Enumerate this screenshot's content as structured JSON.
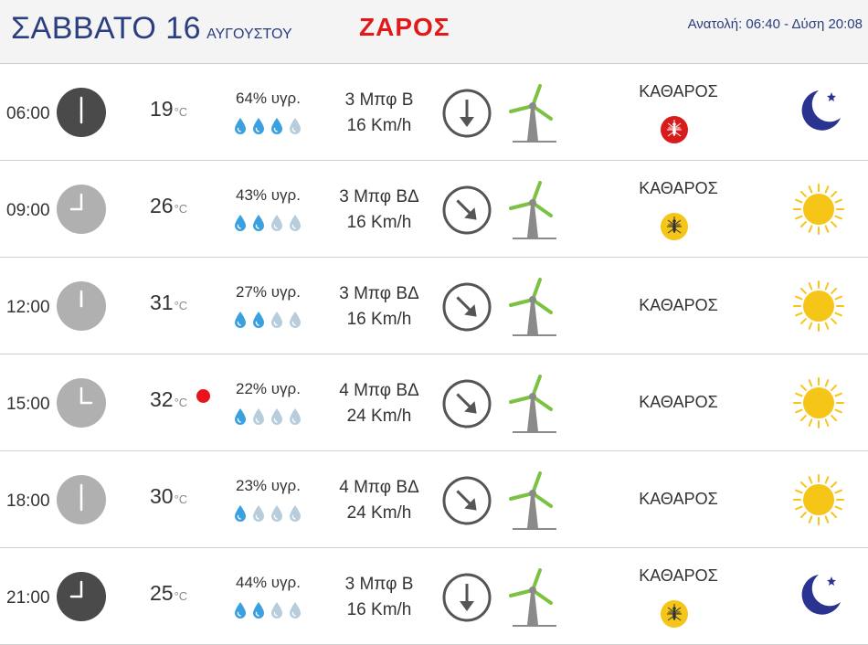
{
  "header": {
    "day": "ΣΑΒΒΑΤΟ 16",
    "month": "ΑΥΓΟΥΣΤΟΥ",
    "brand": "ΖΑΡΟΣ",
    "sun_info": "Ανατολή: 06:40  - Δύση 20:08"
  },
  "colors": {
    "title": "#2a3e80",
    "brand": "#e01a1a",
    "clock_night": "#4a4a4a",
    "clock_day": "#b0b0b0",
    "drop_filled": "#3aa0e0",
    "drop_empty": "#b8cddc",
    "turbine_blade": "#7cc242",
    "sun": "#f5c518",
    "moon": "#2a3490",
    "mosquito_red": "#d81b1b",
    "mosquito_yellow": "#f5c518"
  },
  "rows": [
    {
      "time": "06:00",
      "clock_icon": "clock-night-icon",
      "temp": "19",
      "temp_unit": "°C",
      "hot": false,
      "humidity": "64% υγρ.",
      "drops_filled": 3,
      "drops_total": 4,
      "wind_force": "3 Μπφ Β",
      "wind_speed": "16 Km/h",
      "wind_dir": "Β",
      "sky": "ΚΑΘΑΡΟΣ",
      "mosquito": "red",
      "weather_icon": "moon-icon"
    },
    {
      "time": "09:00",
      "clock_icon": "clock-day-icon",
      "temp": "26",
      "temp_unit": "°C",
      "hot": false,
      "humidity": "43% υγρ.",
      "drops_filled": 2,
      "drops_total": 4,
      "wind_force": "3 Μπφ ΒΔ",
      "wind_speed": "16 Km/h",
      "wind_dir": "ΒΔ",
      "sky": "ΚΑΘΑΡΟΣ",
      "mosquito": "yellow",
      "weather_icon": "sun-icon"
    },
    {
      "time": "12:00",
      "clock_icon": "clock-day-icon",
      "temp": "31",
      "temp_unit": "°C",
      "hot": false,
      "humidity": "27% υγρ.",
      "drops_filled": 2,
      "drops_total": 4,
      "wind_force": "3 Μπφ ΒΔ",
      "wind_speed": "16 Km/h",
      "wind_dir": "ΒΔ",
      "sky": "ΚΑΘΑΡΟΣ",
      "mosquito": null,
      "weather_icon": "sun-icon"
    },
    {
      "time": "15:00",
      "clock_icon": "clock-day-icon",
      "temp": "32",
      "temp_unit": "°C",
      "hot": true,
      "humidity": "22% υγρ.",
      "drops_filled": 1,
      "drops_total": 4,
      "wind_force": "4 Μπφ ΒΔ",
      "wind_speed": "24 Km/h",
      "wind_dir": "ΒΔ",
      "sky": "ΚΑΘΑΡΟΣ",
      "mosquito": null,
      "weather_icon": "sun-icon"
    },
    {
      "time": "18:00",
      "clock_icon": "clock-day-icon",
      "temp": "30",
      "temp_unit": "°C",
      "hot": false,
      "humidity": "23% υγρ.",
      "drops_filled": 1,
      "drops_total": 4,
      "wind_force": "4 Μπφ ΒΔ",
      "wind_speed": "24 Km/h",
      "wind_dir": "ΒΔ",
      "sky": "ΚΑΘΑΡΟΣ",
      "mosquito": null,
      "weather_icon": "sun-icon"
    },
    {
      "time": "21:00",
      "clock_icon": "clock-night-icon",
      "temp": "25",
      "temp_unit": "°C",
      "hot": false,
      "humidity": "44% υγρ.",
      "drops_filled": 2,
      "drops_total": 4,
      "wind_force": "3 Μπφ Β",
      "wind_speed": "16 Km/h",
      "wind_dir": "Β",
      "sky": "ΚΑΘΑΡΟΣ",
      "mosquito": "yellow",
      "weather_icon": "moon-icon"
    }
  ]
}
